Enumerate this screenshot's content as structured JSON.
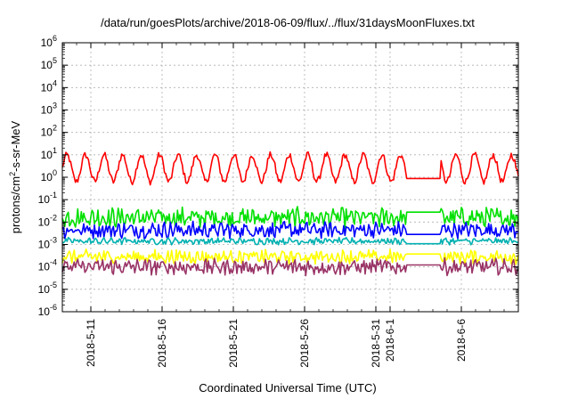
{
  "chart_data": {
    "type": "line",
    "title": "/data/run/goesPlots/archive/2018-06-09/flux/../flux/31daysMoonFluxes.txt",
    "xlabel": "Coordinated Universal Time (UTC)",
    "ylabel_main": "protons/cm",
    "ylabel_sup": "2",
    "ylabel_rest": "-s-sr-MeV",
    "y_scale": "log",
    "ylim_exponents": [
      -6,
      6
    ],
    "y_tick_labels": [
      {
        "base": "10",
        "exp": "-6"
      },
      {
        "base": "10",
        "exp": "-5"
      },
      {
        "base": "10",
        "exp": "-4"
      },
      {
        "base": "10",
        "exp": "-3"
      },
      {
        "base": "10",
        "exp": "-2"
      },
      {
        "base": "10",
        "exp": "-1"
      },
      {
        "base": "10",
        "exp": "0"
      },
      {
        "base": "10",
        "exp": "1"
      },
      {
        "base": "10",
        "exp": "2"
      },
      {
        "base": "10",
        "exp": "3"
      },
      {
        "base": "10",
        "exp": "4"
      },
      {
        "base": "10",
        "exp": "5"
      },
      {
        "base": "10",
        "exp": "6"
      }
    ],
    "xlim": [
      "2018-05-09T00:00",
      "2018-06-10T00:00"
    ],
    "x_ticks": [
      {
        "date": "2018-05-11",
        "label": "2018-5-11"
      },
      {
        "date": "2018-05-16",
        "label": "2018-5-16"
      },
      {
        "date": "2018-05-21",
        "label": "2018-5-21"
      },
      {
        "date": "2018-05-26",
        "label": "2018-5-26"
      },
      {
        "date": "2018-05-31",
        "label": "2018-5-31"
      },
      {
        "date": "2018-06-01",
        "label": "2018-6-1"
      },
      {
        "date": "2018-06-06",
        "label": "2018-6-6"
      }
    ],
    "grid": true,
    "data_gap": [
      "2018-06-02T06:00",
      "2018-06-04T12:00"
    ],
    "series": [
      {
        "color": "#ff0000",
        "log10_level": 0.4,
        "wave_amplitude": 0.6,
        "wave_period_days": 1.3,
        "noise": 0.15
      },
      {
        "color": "#00e000",
        "log10_level": -1.8,
        "wave_amplitude": 0.15,
        "wave_period_days": 0.35,
        "noise": 0.35
      },
      {
        "color": "#0000ff",
        "log10_level": -2.35,
        "wave_amplitude": 0.1,
        "wave_period_days": 0.4,
        "noise": 0.3
      },
      {
        "color": "#00b0b0",
        "log10_level": -2.85,
        "wave_amplitude": 0.05,
        "wave_period_days": 0.5,
        "noise": 0.12
      },
      {
        "color": "#ffff00",
        "log10_level": -3.55,
        "wave_amplitude": 0.1,
        "wave_period_days": 0.3,
        "noise": 0.25
      },
      {
        "color": "#993366",
        "log10_level": -4.0,
        "wave_amplitude": 0.1,
        "wave_period_days": 0.3,
        "noise": 0.3
      }
    ]
  }
}
